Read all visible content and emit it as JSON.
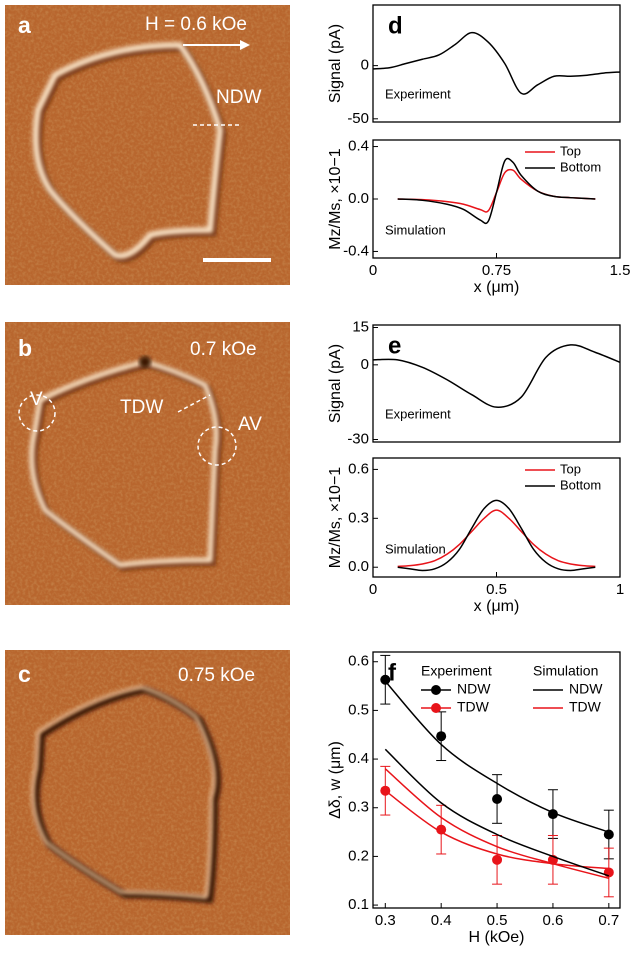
{
  "images": [
    {
      "letter": "a",
      "labels": [
        "H = 0.6 kOe",
        "NDW"
      ]
    },
    {
      "letter": "b",
      "labels": [
        "0.7 kOe",
        "V",
        "TDW",
        "AV"
      ]
    },
    {
      "letter": "c",
      "labels": [
        "0.75 kOe"
      ]
    }
  ],
  "chart_data": [
    {
      "type": "line",
      "letter": "d",
      "ylabel": "Signal (pA)",
      "annotation": "Experiment",
      "x": [
        0,
        0.1,
        0.2,
        0.3,
        0.4,
        0.5,
        0.6,
        0.7,
        0.8,
        0.9,
        1.0,
        1.1,
        1.2,
        1.3,
        1.4,
        1.5
      ],
      "series": [
        {
          "color": "#000000",
          "values": [
            -3,
            -2,
            2,
            6,
            10,
            20,
            31,
            22,
            2,
            -26,
            -18,
            -10,
            -10,
            -9,
            -7,
            -6
          ]
        }
      ],
      "xlim": [
        0,
        1.5
      ],
      "ylim": [
        -53,
        57
      ],
      "yticks": [
        -50,
        0
      ]
    },
    {
      "type": "line",
      "ylabel": "Mz/Ms, ×10−1",
      "xlabel": "x (μm)",
      "annotation": "Simulation",
      "x": [
        0.15,
        0.3,
        0.45,
        0.55,
        0.65,
        0.7,
        0.75,
        0.8,
        0.85,
        0.9,
        1.0,
        1.1,
        1.2,
        1.35
      ],
      "series": [
        {
          "name": "Top",
          "color": "#e8141a",
          "values": [
            0,
            -0.005,
            -0.02,
            -0.04,
            -0.08,
            -0.09,
            0.05,
            0.2,
            0.22,
            0.15,
            0.06,
            0.02,
            0.01,
            0
          ]
        },
        {
          "name": "Bottom",
          "color": "#000000",
          "values": [
            0,
            -0.01,
            -0.04,
            -0.08,
            -0.16,
            -0.17,
            0.05,
            0.29,
            0.28,
            0.18,
            0.06,
            0.02,
            0.01,
            0
          ]
        }
      ],
      "xlim": [
        0,
        1.5
      ],
      "ylim": [
        -0.45,
        0.45
      ],
      "yticks": [
        -0.4,
        {
          "value": 0,
          "label": "0.0"
        },
        0.4
      ],
      "xticks": [
        0,
        0.75,
        1.5
      ]
    },
    {
      "type": "line",
      "letter": "e",
      "ylabel": "Signal (pA)",
      "annotation": "Experiment",
      "x": [
        0,
        0.1,
        0.2,
        0.3,
        0.4,
        0.5,
        0.6,
        0.7,
        0.8,
        0.9,
        1.0
      ],
      "series": [
        {
          "color": "#000000",
          "values": [
            2,
            2,
            -1,
            -6,
            -12,
            -17,
            -13,
            3,
            8,
            5,
            1
          ]
        }
      ],
      "xlim": [
        0,
        1
      ],
      "ylim": [
        -31,
        16
      ],
      "yticks": [
        -30,
        0,
        15
      ]
    },
    {
      "type": "line",
      "ylabel": "Mz/Ms, ×10−1",
      "xlabel": "x (μm)",
      "annotation": "Simulation",
      "x": [
        0.1,
        0.15,
        0.2,
        0.25,
        0.3,
        0.35,
        0.4,
        0.45,
        0.5,
        0.55,
        0.6,
        0.65,
        0.7,
        0.75,
        0.8,
        0.85,
        0.9
      ],
      "series": [
        {
          "name": "Top",
          "color": "#e8141a",
          "values": [
            0.005,
            0.01,
            0.02,
            0.04,
            0.08,
            0.14,
            0.22,
            0.3,
            0.35,
            0.3,
            0.22,
            0.14,
            0.08,
            0.04,
            0.02,
            0.01,
            0.005
          ]
        },
        {
          "name": "Bottom",
          "color": "#000000",
          "values": [
            0,
            -0.01,
            -0.02,
            -0.01,
            0.03,
            0.11,
            0.24,
            0.36,
            0.41,
            0.36,
            0.24,
            0.11,
            0.03,
            -0.01,
            -0.02,
            -0.01,
            0
          ]
        }
      ],
      "xlim": [
        0,
        1
      ],
      "ylim": [
        -0.06,
        0.67
      ],
      "yticks": [
        {
          "value": 0,
          "label": "0.0"
        },
        0.3,
        0.6
      ],
      "xticks": [
        0,
        0.5,
        1
      ]
    },
    {
      "type": "line",
      "letter": "f",
      "ylabel": "Δδ, w (μm)",
      "xlabel": "H (kOe)",
      "x": [
        0.3,
        0.4,
        0.5,
        0.6,
        0.7
      ],
      "series": [
        {
          "name": "NDW",
          "group": "Experiment",
          "style": "markers",
          "color": "#000000",
          "values": [
            0.563,
            0.447,
            0.318,
            0.287,
            0.245
          ],
          "errors": [
            0.05,
            0.05,
            0.05,
            0.05,
            0.05
          ]
        },
        {
          "name": "TDW",
          "group": "Experiment",
          "style": "markers",
          "color": "#e8141a",
          "values": [
            0.335,
            0.255,
            0.193,
            0.193,
            0.167
          ],
          "errors": [
            0.05,
            0.05,
            0.05,
            0.05,
            0.05
          ]
        },
        {
          "color": "#000000",
          "values": [
            0.56,
            0.43,
            0.35,
            0.29,
            0.25
          ]
        },
        {
          "color": "#e8141a",
          "values": [
            0.335,
            0.25,
            0.205,
            0.185,
            0.175
          ]
        },
        {
          "name": "NDW",
          "group": "Simulation",
          "color": "#000000",
          "values": [
            0.42,
            0.31,
            0.245,
            0.2,
            0.16
          ]
        },
        {
          "name": "TDW",
          "group": "Simulation",
          "color": "#e8141a",
          "values": [
            0.38,
            0.28,
            0.22,
            0.185,
            0.155
          ]
        }
      ],
      "xlim": [
        0.278,
        0.72
      ],
      "ylim": [
        0.094,
        0.62
      ],
      "xticks": [
        0.3,
        0.4,
        0.5,
        0.6,
        0.7
      ],
      "yticks": [
        0.1,
        0.2,
        0.3,
        0.4,
        0.5,
        0.6
      ]
    }
  ]
}
